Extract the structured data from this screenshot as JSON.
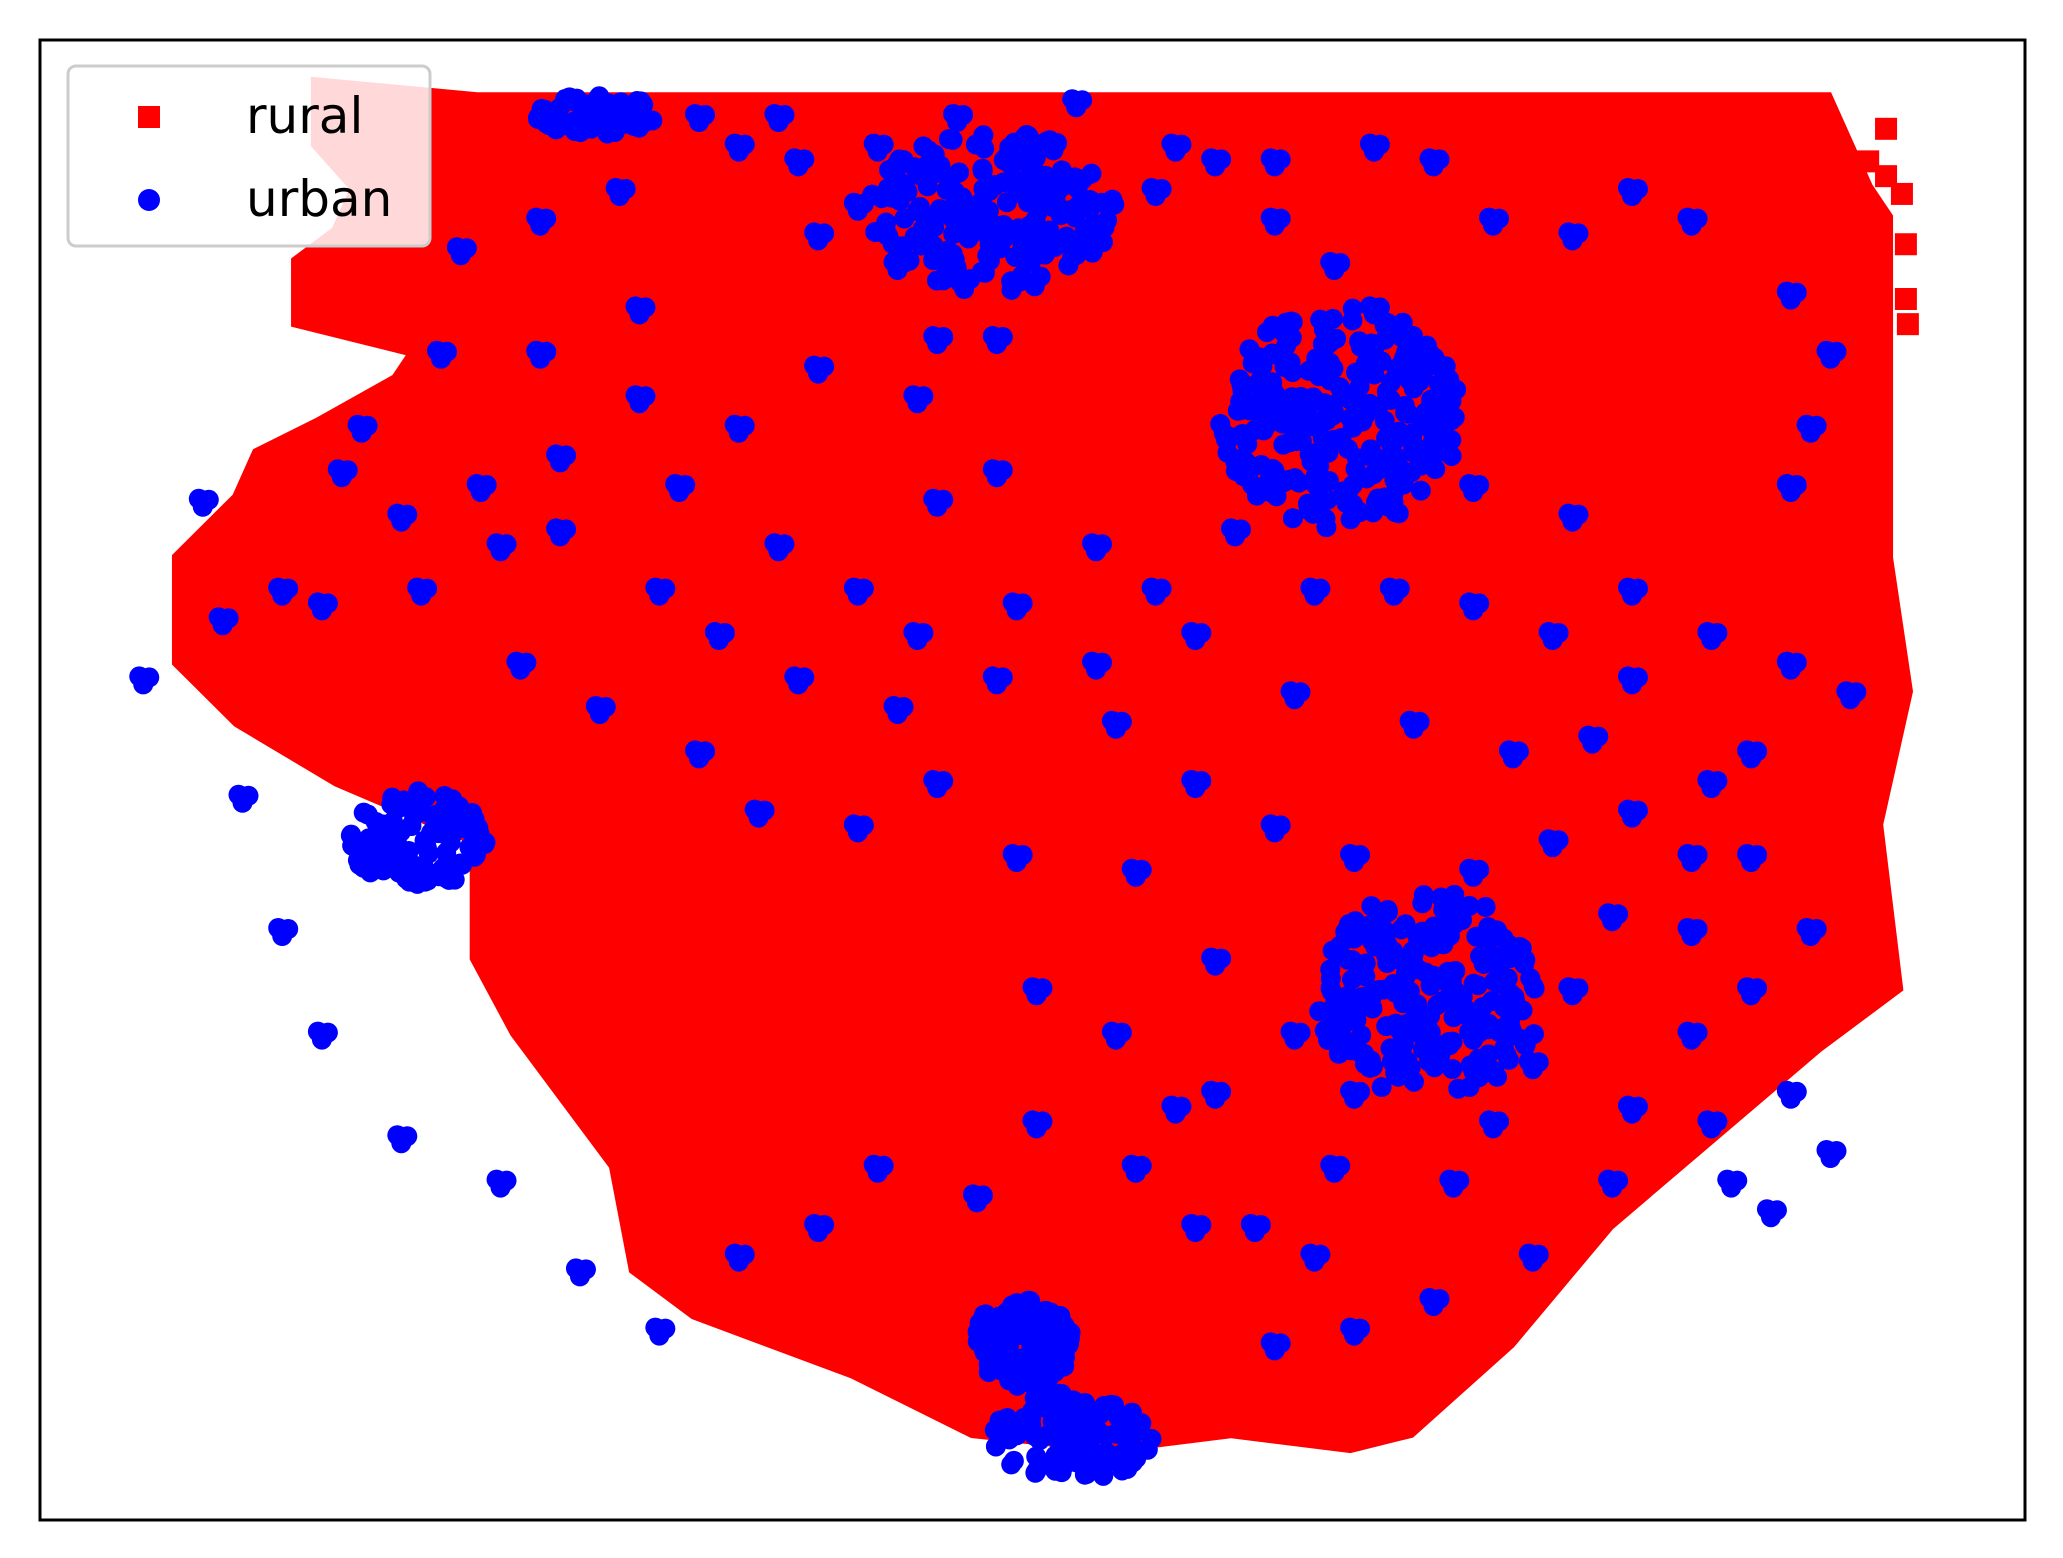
{
  "chart_data": {
    "type": "scatter",
    "title": "",
    "xlabel": "",
    "ylabel": "",
    "xticks": [],
    "yticks": [],
    "grid": false,
    "legend_position": "upper-left",
    "series": [
      {
        "name": "rural",
        "marker": "square",
        "color": "#ff0000",
        "region_outline": [
          [
            0.22,
            0.96
          ],
          [
            0.9,
            0.96
          ],
          [
            0.92,
            0.9
          ],
          [
            0.93,
            0.88
          ],
          [
            0.93,
            0.65
          ],
          [
            0.94,
            0.56
          ],
          [
            0.925,
            0.47
          ],
          [
            0.935,
            0.36
          ],
          [
            0.895,
            0.32
          ],
          [
            0.79,
            0.2
          ],
          [
            0.74,
            0.12
          ],
          [
            0.69,
            0.06
          ],
          [
            0.66,
            0.05
          ],
          [
            0.6,
            0.06
          ],
          [
            0.54,
            0.05
          ],
          [
            0.47,
            0.06
          ],
          [
            0.41,
            0.1
          ],
          [
            0.33,
            0.14
          ],
          [
            0.3,
            0.17
          ],
          [
            0.29,
            0.24
          ],
          [
            0.24,
            0.33
          ],
          [
            0.22,
            0.38
          ],
          [
            0.22,
            0.46
          ],
          [
            0.15,
            0.5
          ],
          [
            0.1,
            0.54
          ],
          [
            0.07,
            0.58
          ],
          [
            0.07,
            0.65
          ],
          [
            0.1,
            0.69
          ],
          [
            0.11,
            0.72
          ],
          [
            0.14,
            0.74
          ],
          [
            0.18,
            0.77
          ],
          [
            0.19,
            0.79
          ],
          [
            0.13,
            0.81
          ],
          [
            0.13,
            0.85
          ],
          [
            0.15,
            0.87
          ],
          [
            0.16,
            0.9
          ],
          [
            0.14,
            0.93
          ],
          [
            0.14,
            0.97
          ],
          [
            0.22,
            0.96
          ]
        ],
        "outliers": [
          [
            0.93,
            0.94
          ],
          [
            0.921,
            0.918
          ],
          [
            0.93,
            0.908
          ],
          [
            0.938,
            0.896
          ],
          [
            0.94,
            0.862
          ],
          [
            0.94,
            0.825
          ],
          [
            0.941,
            0.808
          ]
        ]
      },
      {
        "name": "urban",
        "marker": "circle",
        "color": "#0000ff",
        "clusters": [
          {
            "x": 0.48,
            "y": 0.885,
            "rx": 0.062,
            "ry": 0.055
          },
          {
            "x": 0.655,
            "y": 0.745,
            "rx": 0.061,
            "ry": 0.075
          },
          {
            "x": 0.7,
            "y": 0.355,
            "rx": 0.057,
            "ry": 0.07
          },
          {
            "x": 0.19,
            "y": 0.46,
            "rx": 0.035,
            "ry": 0.033
          },
          {
            "x": 0.52,
            "y": 0.056,
            "rx": 0.04,
            "ry": 0.03
          },
          {
            "x": 0.495,
            "y": 0.12,
            "rx": 0.025,
            "ry": 0.03
          },
          {
            "x": 0.28,
            "y": 0.95,
            "rx": 0.03,
            "ry": 0.014
          }
        ],
        "points": [
          [
            0.35,
            0.93
          ],
          [
            0.38,
            0.92
          ],
          [
            0.41,
            0.89
          ],
          [
            0.39,
            0.87
          ],
          [
            0.43,
            0.85
          ],
          [
            0.45,
            0.8
          ],
          [
            0.3,
            0.82
          ],
          [
            0.25,
            0.79
          ],
          [
            0.2,
            0.79
          ],
          [
            0.16,
            0.74
          ],
          [
            0.22,
            0.7
          ],
          [
            0.26,
            0.67
          ],
          [
            0.32,
            0.7
          ],
          [
            0.37,
            0.66
          ],
          [
            0.41,
            0.63
          ],
          [
            0.44,
            0.6
          ],
          [
            0.49,
            0.62
          ],
          [
            0.53,
            0.58
          ],
          [
            0.58,
            0.6
          ],
          [
            0.63,
            0.56
          ],
          [
            0.69,
            0.54
          ],
          [
            0.74,
            0.52
          ],
          [
            0.8,
            0.48
          ],
          [
            0.83,
            0.45
          ],
          [
            0.79,
            0.41
          ],
          [
            0.77,
            0.36
          ],
          [
            0.83,
            0.33
          ],
          [
            0.88,
            0.29
          ],
          [
            0.85,
            0.23
          ],
          [
            0.79,
            0.23
          ],
          [
            0.75,
            0.18
          ],
          [
            0.7,
            0.15
          ],
          [
            0.66,
            0.13
          ],
          [
            0.62,
            0.12
          ],
          [
            0.58,
            0.2
          ],
          [
            0.55,
            0.24
          ],
          [
            0.5,
            0.27
          ],
          [
            0.47,
            0.22
          ],
          [
            0.42,
            0.24
          ],
          [
            0.39,
            0.2
          ],
          [
            0.35,
            0.18
          ],
          [
            0.31,
            0.13
          ],
          [
            0.27,
            0.17
          ],
          [
            0.23,
            0.23
          ],
          [
            0.18,
            0.26
          ],
          [
            0.14,
            0.33
          ],
          [
            0.12,
            0.4
          ],
          [
            0.1,
            0.49
          ],
          [
            0.05,
            0.57
          ],
          [
            0.09,
            0.61
          ],
          [
            0.14,
            0.62
          ],
          [
            0.19,
            0.63
          ],
          [
            0.24,
            0.58
          ],
          [
            0.28,
            0.55
          ],
          [
            0.33,
            0.52
          ],
          [
            0.36,
            0.48
          ],
          [
            0.41,
            0.47
          ],
          [
            0.45,
            0.5
          ],
          [
            0.49,
            0.45
          ],
          [
            0.55,
            0.44
          ],
          [
            0.59,
            0.38
          ],
          [
            0.63,
            0.33
          ],
          [
            0.59,
            0.29
          ],
          [
            0.65,
            0.24
          ],
          [
            0.71,
            0.23
          ],
          [
            0.73,
            0.27
          ],
          [
            0.83,
            0.4
          ],
          [
            0.86,
            0.36
          ],
          [
            0.89,
            0.4
          ],
          [
            0.91,
            0.56
          ],
          [
            0.88,
            0.58
          ],
          [
            0.84,
            0.6
          ],
          [
            0.8,
            0.63
          ],
          [
            0.77,
            0.68
          ],
          [
            0.72,
            0.7
          ],
          [
            0.69,
            0.77
          ],
          [
            0.67,
            0.82
          ],
          [
            0.65,
            0.85
          ],
          [
            0.62,
            0.88
          ],
          [
            0.59,
            0.92
          ],
          [
            0.56,
            0.9
          ],
          [
            0.52,
            0.86
          ],
          [
            0.48,
            0.8
          ],
          [
            0.44,
            0.76
          ],
          [
            0.39,
            0.78
          ],
          [
            0.35,
            0.74
          ],
          [
            0.3,
            0.76
          ],
          [
            0.26,
            0.72
          ],
          [
            0.23,
            0.66
          ],
          [
            0.18,
            0.68
          ],
          [
            0.12,
            0.63
          ],
          [
            0.08,
            0.69
          ],
          [
            0.15,
            0.71
          ],
          [
            0.34,
            0.6
          ],
          [
            0.31,
            0.63
          ],
          [
            0.38,
            0.57
          ],
          [
            0.43,
            0.55
          ],
          [
            0.48,
            0.57
          ],
          [
            0.54,
            0.54
          ],
          [
            0.58,
            0.5
          ],
          [
            0.62,
            0.47
          ],
          [
            0.66,
            0.45
          ],
          [
            0.72,
            0.44
          ],
          [
            0.76,
            0.46
          ],
          [
            0.78,
            0.53
          ],
          [
            0.86,
            0.52
          ],
          [
            0.88,
            0.7
          ],
          [
            0.89,
            0.74
          ],
          [
            0.9,
            0.79
          ],
          [
            0.88,
            0.83
          ],
          [
            0.83,
            0.88
          ],
          [
            0.8,
            0.9
          ],
          [
            0.77,
            0.87
          ],
          [
            0.73,
            0.88
          ],
          [
            0.7,
            0.92
          ],
          [
            0.67,
            0.93
          ],
          [
            0.62,
            0.92
          ],
          [
            0.57,
            0.93
          ],
          [
            0.52,
            0.96
          ],
          [
            0.46,
            0.95
          ],
          [
            0.42,
            0.93
          ],
          [
            0.37,
            0.95
          ],
          [
            0.33,
            0.95
          ],
          [
            0.29,
            0.9
          ],
          [
            0.25,
            0.88
          ],
          [
            0.21,
            0.86
          ],
          [
            0.45,
            0.69
          ],
          [
            0.48,
            0.71
          ],
          [
            0.53,
            0.66
          ],
          [
            0.56,
            0.63
          ],
          [
            0.6,
            0.67
          ],
          [
            0.64,
            0.63
          ],
          [
            0.68,
            0.63
          ],
          [
            0.72,
            0.62
          ],
          [
            0.76,
            0.6
          ],
          [
            0.8,
            0.57
          ],
          [
            0.84,
            0.5
          ],
          [
            0.86,
            0.45
          ],
          [
            0.5,
            0.36
          ],
          [
            0.54,
            0.33
          ],
          [
            0.57,
            0.28
          ],
          [
            0.61,
            0.2
          ],
          [
            0.64,
            0.18
          ],
          [
            0.66,
            0.29
          ],
          [
            0.72,
            0.33
          ],
          [
            0.75,
            0.31
          ],
          [
            0.8,
            0.28
          ],
          [
            0.84,
            0.27
          ],
          [
            0.87,
            0.21
          ],
          [
            0.9,
            0.25
          ]
        ]
      }
    ]
  }
}
